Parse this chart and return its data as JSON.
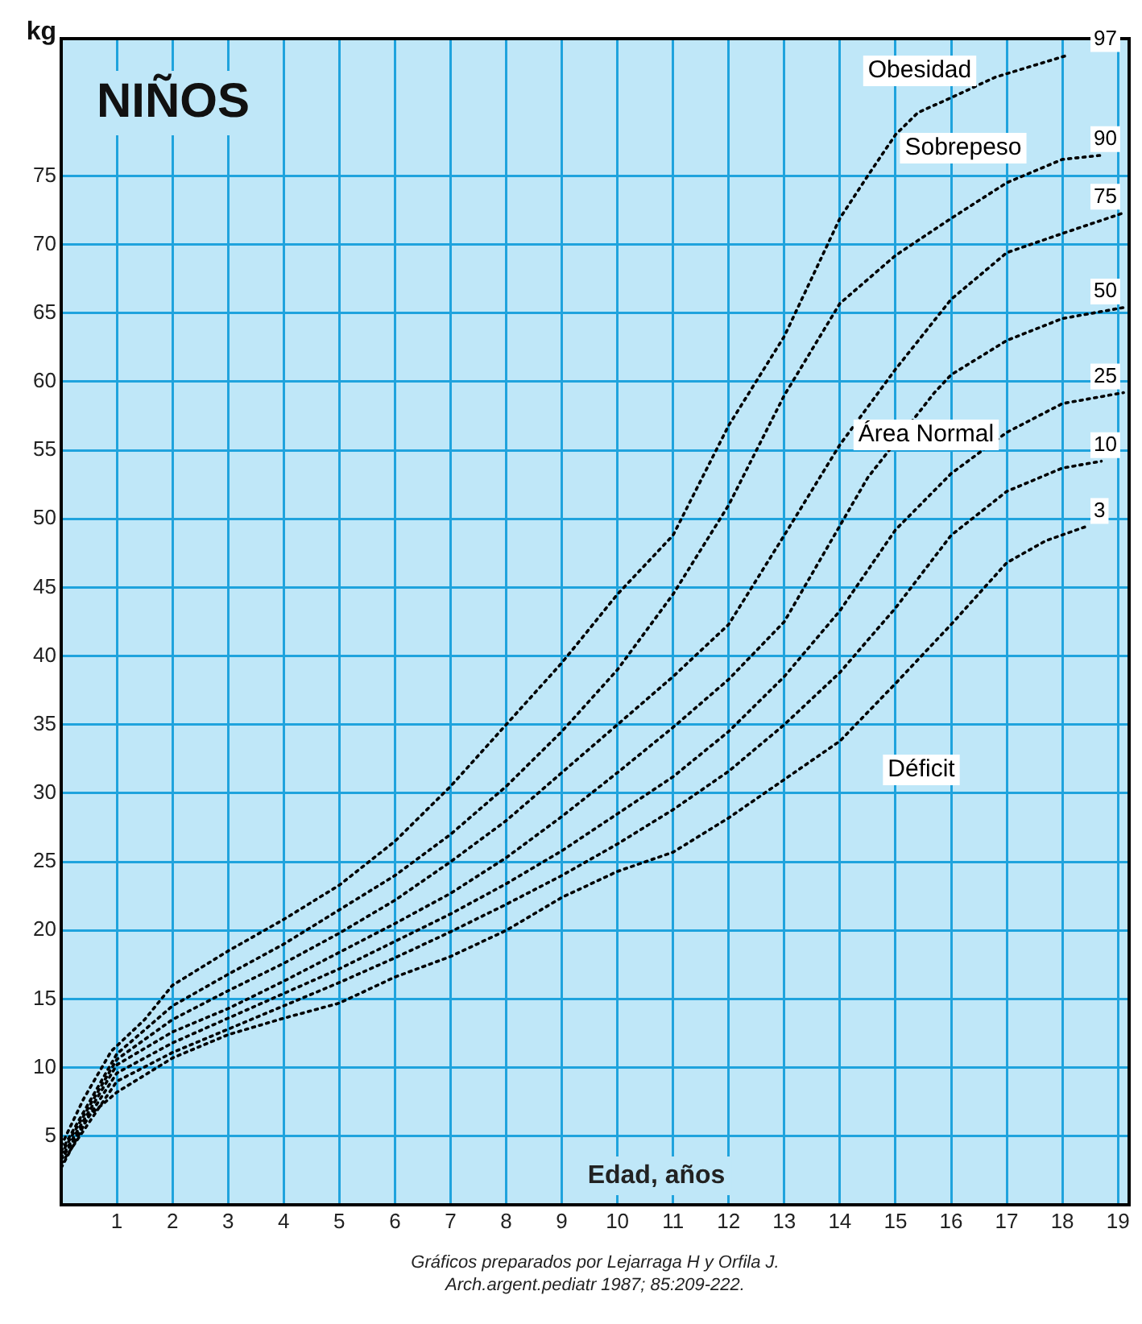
{
  "chart_data": {
    "type": "line",
    "title": "NIÑOS",
    "xlabel": "Edad, años",
    "ylabel": "kg",
    "xlim": [
      0,
      19.2
    ],
    "xticks": [
      1,
      2,
      3,
      4,
      5,
      6,
      7,
      8,
      9,
      10,
      11,
      12,
      13,
      14,
      15,
      16,
      17,
      18,
      19
    ],
    "ylim": [
      0,
      85
    ],
    "yticks": [
      5,
      10,
      15,
      20,
      25,
      30,
      35,
      40,
      45,
      50,
      55,
      60,
      65,
      70,
      75
    ],
    "grid": true,
    "legend": false,
    "marker": "none",
    "line_style": "dotted",
    "series": [
      {
        "name": "97",
        "color": "#000000",
        "x": [
          0,
          0.4,
          0.9,
          1.5,
          2,
          3,
          4,
          5,
          6,
          7,
          8,
          9,
          10,
          11,
          12,
          13,
          14,
          14.5,
          15,
          15.4,
          16,
          16.8,
          18.1
        ],
        "values": [
          4.3,
          7.7,
          11.2,
          13.5,
          16,
          18.5,
          20.8,
          23.3,
          26.5,
          30.5,
          35,
          39.5,
          44.5,
          48.8,
          56.8,
          63.3,
          71.9,
          75,
          78,
          79.6,
          80.7,
          82.2,
          83.8
        ]
      },
      {
        "name": "90",
        "color": "#000000",
        "x": [
          0,
          1,
          2,
          3,
          4,
          5,
          6,
          7,
          8,
          9,
          10,
          11,
          12,
          13,
          14,
          15,
          16,
          17,
          18,
          18.7
        ],
        "values": [
          3.9,
          11,
          14.5,
          16.8,
          19,
          21.5,
          24,
          27,
          30.5,
          34.5,
          39,
          44.5,
          51,
          59,
          65.7,
          69.2,
          71.9,
          74.5,
          76.2,
          76.5
        ]
      },
      {
        "name": "75",
        "color": "#000000",
        "x": [
          0,
          1,
          2,
          3,
          4,
          5,
          6,
          7,
          8,
          9,
          10,
          11,
          12,
          13,
          14,
          15,
          16,
          17,
          18,
          19.1
        ],
        "values": [
          3.7,
          10.6,
          13.5,
          15.6,
          17.6,
          19.8,
          22.2,
          25,
          28,
          31.5,
          35,
          38.5,
          42.3,
          48.8,
          55.4,
          60.9,
          66,
          69.4,
          70.8,
          72.3
        ]
      },
      {
        "name": "50",
        "color": "#000000",
        "x": [
          0,
          1,
          2,
          3,
          4,
          5,
          6,
          7,
          8,
          9,
          10,
          11,
          12,
          13,
          14,
          14.5,
          15.7,
          16,
          17,
          18,
          19.1
        ],
        "values": [
          3.4,
          10.2,
          12.6,
          14.3,
          16.3,
          18.4,
          20.5,
          22.7,
          25.3,
          28.3,
          31.5,
          34.8,
          38.3,
          42.5,
          49.5,
          53,
          59.2,
          60.5,
          63,
          64.6,
          65.4
        ]
      },
      {
        "name": "25",
        "color": "#000000",
        "x": [
          0,
          1,
          2,
          3,
          4,
          5,
          6,
          7,
          8,
          9,
          10,
          11,
          12,
          13,
          14,
          15,
          16,
          17,
          18,
          19.1
        ],
        "values": [
          3.3,
          9.6,
          11.8,
          13.6,
          15.4,
          17.2,
          19.2,
          21.2,
          23.4,
          25.8,
          28.5,
          31.2,
          34.5,
          38.5,
          43.3,
          49.2,
          53.3,
          56.3,
          58.4,
          59.2
        ]
      },
      {
        "name": "10",
        "color": "#000000",
        "x": [
          0,
          1,
          2,
          3,
          4,
          5,
          6,
          7,
          8,
          9,
          10,
          11,
          12,
          13,
          14,
          15,
          16,
          17,
          18,
          18.7
        ],
        "values": [
          3,
          9,
          11.1,
          12.8,
          14.5,
          16.2,
          18,
          19.9,
          21.9,
          24,
          26.3,
          28.8,
          31.6,
          35,
          38.8,
          43.5,
          48.8,
          52,
          53.7,
          54.2
        ]
      },
      {
        "name": "3",
        "color": "#000000",
        "x": [
          0,
          0.5,
          1,
          2,
          3,
          4,
          5,
          6,
          7,
          8,
          9,
          10,
          11,
          12,
          13,
          14,
          15,
          16,
          17,
          17.7,
          18.4
        ],
        "values": [
          2.7,
          6.5,
          8.2,
          10.7,
          12.4,
          13.6,
          14.7,
          16.6,
          18.1,
          20,
          22.4,
          24.3,
          25.7,
          28.2,
          31,
          33.8,
          38,
          42.3,
          46.8,
          48.4,
          49.4
        ]
      }
    ],
    "annotations": [
      "Obesidad",
      "Sobrepeso",
      "Área Normal",
      "Déficit",
      "Gráficos preparados por Lejarraga H y Orfila J.",
      "Arch.argent.pediatr 1987; 85:209-222."
    ]
  }
}
